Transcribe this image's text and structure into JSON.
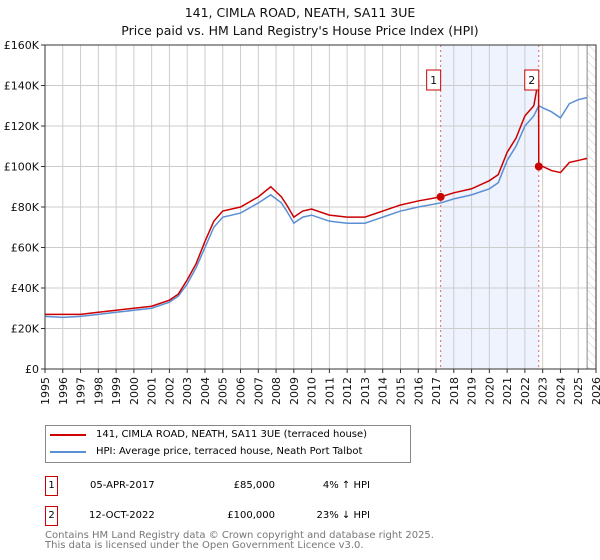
{
  "chart_data": {
    "type": "line",
    "title": "141, CIMLA ROAD, NEATH, SA11 3UE",
    "subtitle": "Price paid vs. HM Land Registry's House Price Index (HPI)",
    "xlim": [
      1995,
      2026
    ],
    "ylim": [
      0,
      160000
    ],
    "x_ticks": [
      "1995",
      "1996",
      "1997",
      "1998",
      "1999",
      "2000",
      "2001",
      "2002",
      "2003",
      "2004",
      "2005",
      "2006",
      "2007",
      "2008",
      "2009",
      "2010",
      "2011",
      "2012",
      "2013",
      "2014",
      "2015",
      "2016",
      "2017",
      "2018",
      "2019",
      "2020",
      "2021",
      "2022",
      "2023",
      "2024",
      "2025",
      "2026"
    ],
    "y_ticks": [
      {
        "v": 0,
        "l": "£0"
      },
      {
        "v": 20000,
        "l": "£20K"
      },
      {
        "v": 40000,
        "l": "£40K"
      },
      {
        "v": 60000,
        "l": "£60K"
      },
      {
        "v": 80000,
        "l": "£80K"
      },
      {
        "v": 100000,
        "l": "£100K"
      },
      {
        "v": 120000,
        "l": "£120K"
      },
      {
        "v": 140000,
        "l": "£140K"
      },
      {
        "v": 160000,
        "l": "£160K"
      }
    ],
    "grid": true,
    "series": [
      {
        "name": "141, CIMLA ROAD, NEATH, SA11 3UE (terraced house)",
        "color": "#cc0000",
        "x": [
          1995,
          1996,
          1997,
          1998,
          1999,
          2000,
          2001,
          2002,
          2002.5,
          2003,
          2003.5,
          2004,
          2004.5,
          2005,
          2006,
          2007,
          2007.7,
          2008.3,
          2008.6,
          2009,
          2009.5,
          2010,
          2011,
          2012,
          2013,
          2014,
          2015,
          2016,
          2017.26,
          2018,
          2019,
          2020,
          2020.5,
          2021,
          2021.5,
          2022,
          2022.5,
          2022.77,
          2022.78,
          2023,
          2023.5,
          2024,
          2024.5,
          2025,
          2025.5
        ],
        "y": [
          27000,
          27000,
          27000,
          28000,
          29000,
          30000,
          31000,
          34000,
          37000,
          44000,
          52000,
          63000,
          73000,
          78000,
          80000,
          85000,
          90000,
          85000,
          81000,
          75000,
          78000,
          79000,
          76000,
          75000,
          75000,
          78000,
          81000,
          83000,
          85000,
          87000,
          89000,
          93000,
          96000,
          107000,
          114000,
          125000,
          130000,
          143000,
          100000,
          100000,
          98000,
          97000,
          102000,
          103000,
          104000
        ]
      },
      {
        "name": "HPI: Average price, terraced house, Neath Port Talbot",
        "color": "#5b8fd4",
        "x": [
          1995,
          1996,
          1997,
          1998,
          1999,
          2000,
          2001,
          2002,
          2002.5,
          2003,
          2003.5,
          2004,
          2004.5,
          2005,
          2006,
          2007,
          2007.7,
          2008.3,
          2008.6,
          2009,
          2009.5,
          2010,
          2011,
          2012,
          2013,
          2014,
          2015,
          2016,
          2017.26,
          2018,
          2019,
          2020,
          2020.5,
          2021,
          2021.5,
          2022,
          2022.5,
          2022.78,
          2023,
          2023.5,
          2024,
          2024.5,
          2025,
          2025.5
        ],
        "y": [
          26000,
          25500,
          26000,
          27000,
          28000,
          29000,
          30000,
          33000,
          36000,
          42000,
          50000,
          60000,
          70000,
          75000,
          77000,
          82000,
          86000,
          82000,
          78000,
          72000,
          75000,
          76000,
          73000,
          72000,
          72000,
          75000,
          78000,
          80000,
          82000,
          84000,
          86000,
          89000,
          92000,
          103000,
          110000,
          120000,
          125000,
          130000,
          129000,
          127000,
          124000,
          131000,
          133000,
          134000
        ]
      }
    ],
    "annotations": [
      {
        "label": "1",
        "x": 2017.26,
        "y": 85000
      },
      {
        "label": "2",
        "x": 2022.78,
        "y": 100000
      }
    ],
    "shaded_range": [
      2017.26,
      2022.78
    ],
    "hatched_after": 2025.5
  },
  "legend": {
    "red": "141, CIMLA ROAD, NEATH, SA11 3UE (terraced house)",
    "blue": "HPI: Average price, terraced house, Neath Port Talbot"
  },
  "sales": [
    {
      "num": "1",
      "date": "05-APR-2017",
      "price": "£85,000",
      "hpi": "4% ↑ HPI"
    },
    {
      "num": "2",
      "date": "12-OCT-2022",
      "price": "£100,000",
      "hpi": "23% ↓ HPI"
    }
  ],
  "footer": {
    "line1": "Contains HM Land Registry data © Crown copyright and database right 2025.",
    "line2": "This data is licensed under the Open Government Licence v3.0."
  }
}
